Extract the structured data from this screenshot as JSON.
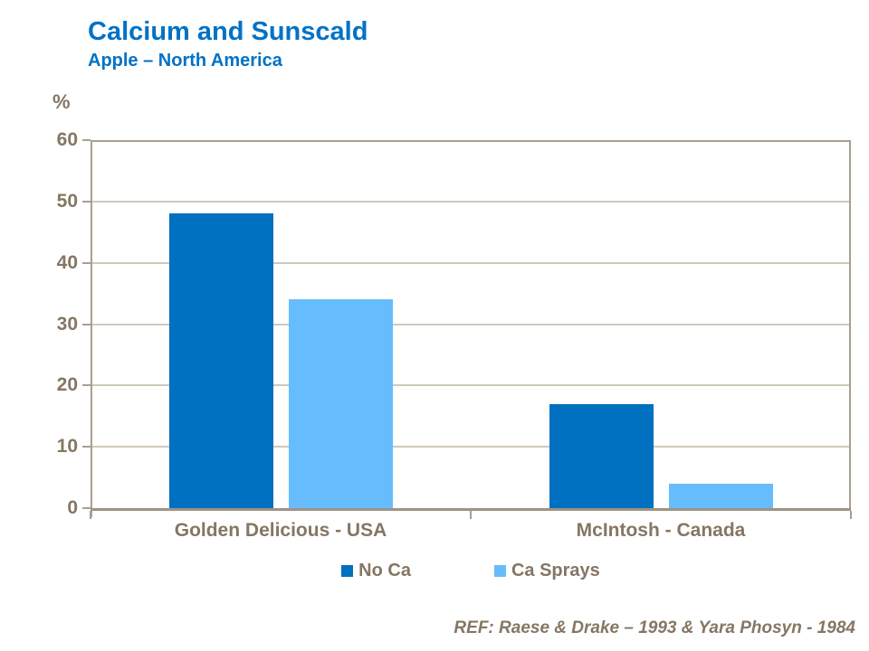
{
  "header": {
    "title": "Calcium and Sunscald",
    "subtitle": "Apple – North America"
  },
  "reference": "REF: Raese & Drake – 1993 & Yara Phosyn - 1984",
  "colors": {
    "title_blue": "#0072C6",
    "no_ca_bar": "#0070C0",
    "ca_sprays_bar": "#66BCFC",
    "text_brown": "#857663",
    "gridline": "#D0C8BC",
    "axis_border": "#A89E92",
    "axis_bottom": "#9E9385"
  },
  "chart_data": {
    "type": "bar",
    "categories": [
      "Golden Delicious - USA",
      "McIntosh - Canada"
    ],
    "series": [
      {
        "name": "No Ca",
        "color": "#0070C0",
        "values": [
          48,
          17
        ]
      },
      {
        "name": "Ca Sprays",
        "color": "#66BCFC",
        "values": [
          34,
          4
        ]
      }
    ],
    "title": "Calcium and Sunscald",
    "subtitle": "Apple – North America",
    "xlabel": "",
    "ylabel": "%",
    "ylim": [
      0,
      60
    ],
    "yticks": [
      0,
      10,
      20,
      30,
      40,
      50,
      60
    ],
    "grid": true,
    "legend_position": "bottom"
  }
}
